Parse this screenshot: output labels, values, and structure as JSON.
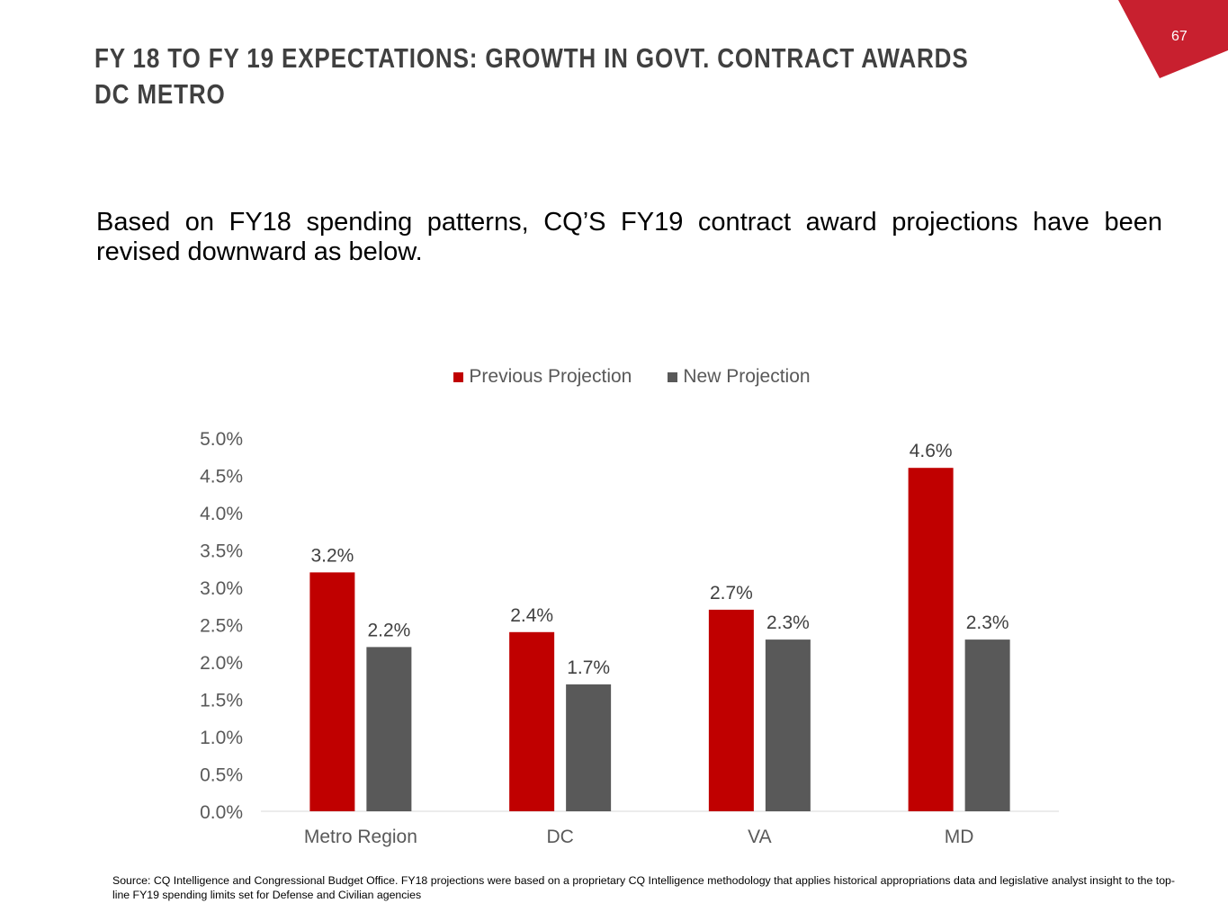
{
  "page_number": "67",
  "title_line1": "FY 18 TO FY 19 EXPECTATIONS: GROWTH IN GOVT. CONTRACT AWARDS",
  "title_line2": "DC METRO",
  "body_text": "Based on FY18 spending patterns, CQ’S FY19 contract award projections have been revised downward as below.",
  "source_text": "Source: CQ Intelligence and Congressional Budget Office. FY18 projections were based on a proprietary CQ Intelligence methodology that applies historical appropriations data and legislative analyst insight to the top-line FY19 spending limits set for Defense and Civilian agencies",
  "colors": {
    "accent": "#C8202F",
    "previous": "#C00000",
    "new": "#595959"
  },
  "chart_data": {
    "type": "bar",
    "categories": [
      "Metro Region",
      "DC",
      "VA",
      "MD"
    ],
    "series": [
      {
        "name": "Previous Projection",
        "values": [
          3.2,
          2.4,
          2.7,
          4.6
        ],
        "labels": [
          "3.2%",
          "2.4%",
          "2.7%",
          "4.6%"
        ],
        "color": "#C00000"
      },
      {
        "name": "New Projection",
        "values": [
          2.2,
          1.7,
          2.3,
          2.3
        ],
        "labels": [
          "2.2%",
          "1.7%",
          "2.3%",
          "2.3%"
        ],
        "color": "#595959"
      }
    ],
    "ylim": [
      0,
      5
    ],
    "yticks": [
      "0.0%",
      "0.5%",
      "1.0%",
      "1.5%",
      "2.0%",
      "2.5%",
      "3.0%",
      "3.5%",
      "4.0%",
      "4.5%",
      "5.0%"
    ],
    "legend_position": "top-center",
    "grid": false
  }
}
